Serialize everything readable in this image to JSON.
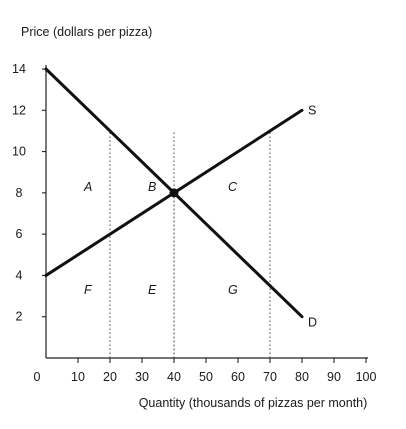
{
  "chart_data": {
    "type": "line",
    "xlabel": "Quantity (thousands of pizzas per month)",
    "ylabel": "Price (dollars per pizza)",
    "xlim": [
      0,
      100
    ],
    "ylim": [
      0,
      14
    ],
    "x_ticks": [
      "0",
      "10",
      "20",
      "30",
      "40",
      "50",
      "60",
      "70",
      "80",
      "90",
      "100"
    ],
    "y_ticks": [
      "2",
      "4",
      "6",
      "8",
      "10",
      "12",
      "14"
    ],
    "grid": false,
    "series": [
      {
        "name": "S",
        "points": [
          [
            0,
            4
          ],
          [
            80,
            12
          ]
        ]
      },
      {
        "name": "D",
        "points": [
          [
            0,
            14
          ],
          [
            80,
            2
          ]
        ]
      }
    ],
    "equilibrium": {
      "x": 40,
      "y": 8
    },
    "vertical_dotted_lines": [
      20,
      40,
      70
    ],
    "area_labels": [
      {
        "text": "A",
        "x": 10,
        "y": 8
      },
      {
        "text": "B",
        "x": 30,
        "y": 8
      },
      {
        "text": "C",
        "x": 55,
        "y": 8
      },
      {
        "text": "F",
        "x": 10,
        "y": 3
      },
      {
        "text": "E",
        "x": 30,
        "y": 3
      },
      {
        "text": "G",
        "x": 55,
        "y": 3
      }
    ],
    "colors": {
      "line": "#111111",
      "axis": "#222222"
    }
  }
}
